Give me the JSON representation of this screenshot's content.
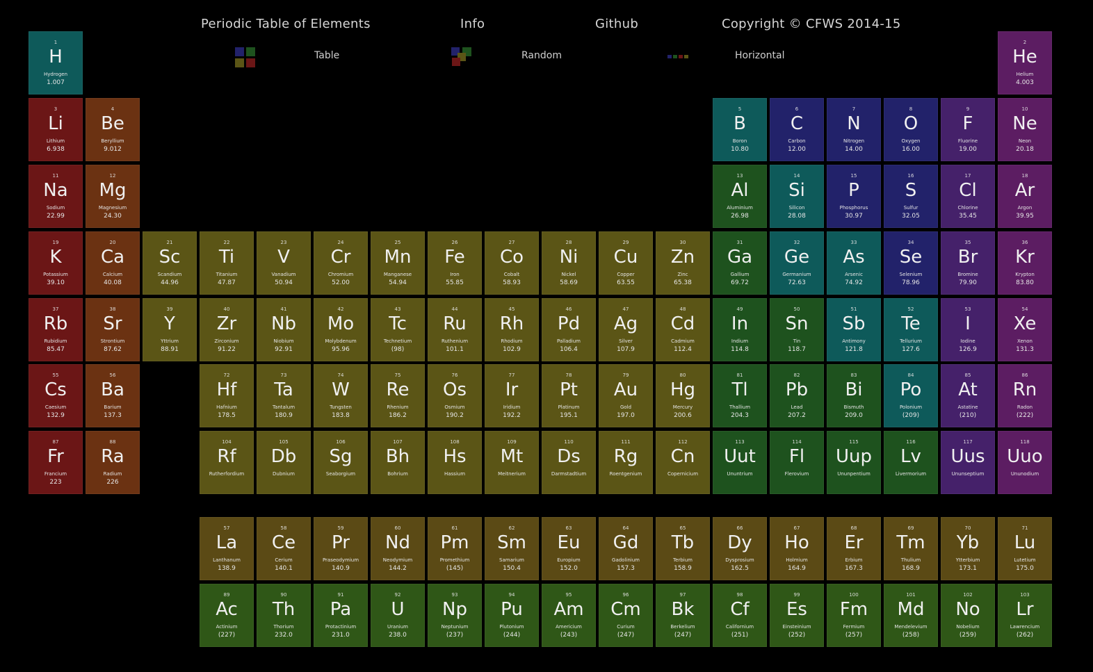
{
  "nav": {
    "title": "Periodic Table of Elements",
    "info": "Info",
    "github": "Github",
    "copyright": "Copyright © CFWS 2014-15"
  },
  "views": {
    "table": "Table",
    "random": "Random",
    "horizontal": "Horizontal"
  },
  "colors": {
    "alkali_metal": "#6b1616",
    "alkaline_earth_metal": "#6b3212",
    "transition_metal": "#5b5516",
    "post_transition_metal": "#1e521e",
    "metalloid": "#0e5a5a",
    "nonmetal": "#22226a",
    "halogen": "#45216a",
    "noble_gas": "#5c1d62",
    "lanthanide": "#5b4a15",
    "actinide": "#2f5717"
  },
  "elements": [
    {
      "n": "1",
      "s": "H",
      "name": "Hydrogen",
      "m": "1.007",
      "col": 1,
      "row": 1,
      "cat": "metalloid"
    },
    {
      "n": "2",
      "s": "He",
      "name": "Helium",
      "m": "4.003",
      "col": 18,
      "row": 1,
      "cat": "noble_gas"
    },
    {
      "n": "3",
      "s": "Li",
      "name": "Lithium",
      "m": "6.938",
      "col": 1,
      "row": 2,
      "cat": "alkali_metal"
    },
    {
      "n": "4",
      "s": "Be",
      "name": "Beryllium",
      "m": "9.012",
      "col": 2,
      "row": 2,
      "cat": "alkaline_earth_metal"
    },
    {
      "n": "5",
      "s": "B",
      "name": "Boron",
      "m": "10.80",
      "col": 13,
      "row": 2,
      "cat": "metalloid"
    },
    {
      "n": "6",
      "s": "C",
      "name": "Carbon",
      "m": "12.00",
      "col": 14,
      "row": 2,
      "cat": "nonmetal"
    },
    {
      "n": "7",
      "s": "N",
      "name": "Nitrogen",
      "m": "14.00",
      "col": 15,
      "row": 2,
      "cat": "nonmetal"
    },
    {
      "n": "8",
      "s": "O",
      "name": "Oxygen",
      "m": "16.00",
      "col": 16,
      "row": 2,
      "cat": "nonmetal"
    },
    {
      "n": "9",
      "s": "F",
      "name": "Fluorine",
      "m": "19.00",
      "col": 17,
      "row": 2,
      "cat": "halogen"
    },
    {
      "n": "10",
      "s": "Ne",
      "name": "Neon",
      "m": "20.18",
      "col": 18,
      "row": 2,
      "cat": "noble_gas"
    },
    {
      "n": "11",
      "s": "Na",
      "name": "Sodium",
      "m": "22.99",
      "col": 1,
      "row": 3,
      "cat": "alkali_metal"
    },
    {
      "n": "12",
      "s": "Mg",
      "name": "Magnesium",
      "m": "24.30",
      "col": 2,
      "row": 3,
      "cat": "alkaline_earth_metal"
    },
    {
      "n": "13",
      "s": "Al",
      "name": "Aluminium",
      "m": "26.98",
      "col": 13,
      "row": 3,
      "cat": "post_transition_metal"
    },
    {
      "n": "14",
      "s": "Si",
      "name": "Silicon",
      "m": "28.08",
      "col": 14,
      "row": 3,
      "cat": "metalloid"
    },
    {
      "n": "15",
      "s": "P",
      "name": "Phosphorus",
      "m": "30.97",
      "col": 15,
      "row": 3,
      "cat": "nonmetal"
    },
    {
      "n": "16",
      "s": "S",
      "name": "Sulfur",
      "m": "32.05",
      "col": 16,
      "row": 3,
      "cat": "nonmetal"
    },
    {
      "n": "17",
      "s": "Cl",
      "name": "Chlorine",
      "m": "35.45",
      "col": 17,
      "row": 3,
      "cat": "halogen"
    },
    {
      "n": "18",
      "s": "Ar",
      "name": "Argon",
      "m": "39.95",
      "col": 18,
      "row": 3,
      "cat": "noble_gas"
    },
    {
      "n": "19",
      "s": "K",
      "name": "Potassium",
      "m": "39.10",
      "col": 1,
      "row": 4,
      "cat": "alkali_metal"
    },
    {
      "n": "20",
      "s": "Ca",
      "name": "Calcium",
      "m": "40.08",
      "col": 2,
      "row": 4,
      "cat": "alkaline_earth_metal"
    },
    {
      "n": "21",
      "s": "Sc",
      "name": "Scandium",
      "m": "44.96",
      "col": 3,
      "row": 4,
      "cat": "transition_metal"
    },
    {
      "n": "22",
      "s": "Ti",
      "name": "Titanium",
      "m": "47.87",
      "col": 4,
      "row": 4,
      "cat": "transition_metal"
    },
    {
      "n": "23",
      "s": "V",
      "name": "Vanadium",
      "m": "50.94",
      "col": 5,
      "row": 4,
      "cat": "transition_metal"
    },
    {
      "n": "24",
      "s": "Cr",
      "name": "Chromium",
      "m": "52.00",
      "col": 6,
      "row": 4,
      "cat": "transition_metal"
    },
    {
      "n": "25",
      "s": "Mn",
      "name": "Manganese",
      "m": "54.94",
      "col": 7,
      "row": 4,
      "cat": "transition_metal"
    },
    {
      "n": "26",
      "s": "Fe",
      "name": "Iron",
      "m": "55.85",
      "col": 8,
      "row": 4,
      "cat": "transition_metal"
    },
    {
      "n": "27",
      "s": "Co",
      "name": "Cobalt",
      "m": "58.93",
      "col": 9,
      "row": 4,
      "cat": "transition_metal"
    },
    {
      "n": "28",
      "s": "Ni",
      "name": "Nickel",
      "m": "58.69",
      "col": 10,
      "row": 4,
      "cat": "transition_metal"
    },
    {
      "n": "29",
      "s": "Cu",
      "name": "Copper",
      "m": "63.55",
      "col": 11,
      "row": 4,
      "cat": "transition_metal"
    },
    {
      "n": "30",
      "s": "Zn",
      "name": "Zinc",
      "m": "65.38",
      "col": 12,
      "row": 4,
      "cat": "transition_metal"
    },
    {
      "n": "31",
      "s": "Ga",
      "name": "Gallium",
      "m": "69.72",
      "col": 13,
      "row": 4,
      "cat": "post_transition_metal"
    },
    {
      "n": "32",
      "s": "Ge",
      "name": "Germanium",
      "m": "72.63",
      "col": 14,
      "row": 4,
      "cat": "metalloid"
    },
    {
      "n": "33",
      "s": "As",
      "name": "Arsenic",
      "m": "74.92",
      "col": 15,
      "row": 4,
      "cat": "metalloid"
    },
    {
      "n": "34",
      "s": "Se",
      "name": "Selenium",
      "m": "78.96",
      "col": 16,
      "row": 4,
      "cat": "nonmetal"
    },
    {
      "n": "35",
      "s": "Br",
      "name": "Bromine",
      "m": "79.90",
      "col": 17,
      "row": 4,
      "cat": "halogen"
    },
    {
      "n": "36",
      "s": "Kr",
      "name": "Krypton",
      "m": "83.80",
      "col": 18,
      "row": 4,
      "cat": "noble_gas"
    },
    {
      "n": "37",
      "s": "Rb",
      "name": "Rubidium",
      "m": "85.47",
      "col": 1,
      "row": 5,
      "cat": "alkali_metal"
    },
    {
      "n": "38",
      "s": "Sr",
      "name": "Strontium",
      "m": "87.62",
      "col": 2,
      "row": 5,
      "cat": "alkaline_earth_metal"
    },
    {
      "n": "39",
      "s": "Y",
      "name": "Yttrium",
      "m": "88.91",
      "col": 3,
      "row": 5,
      "cat": "transition_metal"
    },
    {
      "n": "40",
      "s": "Zr",
      "name": "Zirconium",
      "m": "91.22",
      "col": 4,
      "row": 5,
      "cat": "transition_metal"
    },
    {
      "n": "41",
      "s": "Nb",
      "name": "Niobium",
      "m": "92.91",
      "col": 5,
      "row": 5,
      "cat": "transition_metal"
    },
    {
      "n": "42",
      "s": "Mo",
      "name": "Molybdenum",
      "m": "95.96",
      "col": 6,
      "row": 5,
      "cat": "transition_metal"
    },
    {
      "n": "43",
      "s": "Tc",
      "name": "Technetium",
      "m": "(98)",
      "col": 7,
      "row": 5,
      "cat": "transition_metal"
    },
    {
      "n": "44",
      "s": "Ru",
      "name": "Ruthenium",
      "m": "101.1",
      "col": 8,
      "row": 5,
      "cat": "transition_metal"
    },
    {
      "n": "45",
      "s": "Rh",
      "name": "Rhodium",
      "m": "102.9",
      "col": 9,
      "row": 5,
      "cat": "transition_metal"
    },
    {
      "n": "46",
      "s": "Pd",
      "name": "Palladium",
      "m": "106.4",
      "col": 10,
      "row": 5,
      "cat": "transition_metal"
    },
    {
      "n": "47",
      "s": "Ag",
      "name": "Silver",
      "m": "107.9",
      "col": 11,
      "row": 5,
      "cat": "transition_metal"
    },
    {
      "n": "48",
      "s": "Cd",
      "name": "Cadmium",
      "m": "112.4",
      "col": 12,
      "row": 5,
      "cat": "transition_metal"
    },
    {
      "n": "49",
      "s": "In",
      "name": "Indium",
      "m": "114.8",
      "col": 13,
      "row": 5,
      "cat": "post_transition_metal"
    },
    {
      "n": "50",
      "s": "Sn",
      "name": "Tin",
      "m": "118.7",
      "col": 14,
      "row": 5,
      "cat": "post_transition_metal"
    },
    {
      "n": "51",
      "s": "Sb",
      "name": "Antimony",
      "m": "121.8",
      "col": 15,
      "row": 5,
      "cat": "metalloid"
    },
    {
      "n": "52",
      "s": "Te",
      "name": "Tellurium",
      "m": "127.6",
      "col": 16,
      "row": 5,
      "cat": "metalloid"
    },
    {
      "n": "53",
      "s": "I",
      "name": "Iodine",
      "m": "126.9",
      "col": 17,
      "row": 5,
      "cat": "halogen"
    },
    {
      "n": "54",
      "s": "Xe",
      "name": "Xenon",
      "m": "131.3",
      "col": 18,
      "row": 5,
      "cat": "noble_gas"
    },
    {
      "n": "55",
      "s": "Cs",
      "name": "Caesium",
      "m": "132.9",
      "col": 1,
      "row": 6,
      "cat": "alkali_metal"
    },
    {
      "n": "56",
      "s": "Ba",
      "name": "Barium",
      "m": "137.3",
      "col": 2,
      "row": 6,
      "cat": "alkaline_earth_metal"
    },
    {
      "n": "72",
      "s": "Hf",
      "name": "Hafnium",
      "m": "178.5",
      "col": 4,
      "row": 6,
      "cat": "transition_metal"
    },
    {
      "n": "73",
      "s": "Ta",
      "name": "Tantalum",
      "m": "180.9",
      "col": 5,
      "row": 6,
      "cat": "transition_metal"
    },
    {
      "n": "74",
      "s": "W",
      "name": "Tungsten",
      "m": "183.8",
      "col": 6,
      "row": 6,
      "cat": "transition_metal"
    },
    {
      "n": "75",
      "s": "Re",
      "name": "Rhenium",
      "m": "186.2",
      "col": 7,
      "row": 6,
      "cat": "transition_metal"
    },
    {
      "n": "76",
      "s": "Os",
      "name": "Osmium",
      "m": "190.2",
      "col": 8,
      "row": 6,
      "cat": "transition_metal"
    },
    {
      "n": "77",
      "s": "Ir",
      "name": "Iridium",
      "m": "192.2",
      "col": 9,
      "row": 6,
      "cat": "transition_metal"
    },
    {
      "n": "78",
      "s": "Pt",
      "name": "Platinum",
      "m": "195.1",
      "col": 10,
      "row": 6,
      "cat": "transition_metal"
    },
    {
      "n": "79",
      "s": "Au",
      "name": "Gold",
      "m": "197.0",
      "col": 11,
      "row": 6,
      "cat": "transition_metal"
    },
    {
      "n": "80",
      "s": "Hg",
      "name": "Mercury",
      "m": "200.6",
      "col": 12,
      "row": 6,
      "cat": "transition_metal"
    },
    {
      "n": "81",
      "s": "Tl",
      "name": "Thallium",
      "m": "204.3",
      "col": 13,
      "row": 6,
      "cat": "post_transition_metal"
    },
    {
      "n": "82",
      "s": "Pb",
      "name": "Lead",
      "m": "207.2",
      "col": 14,
      "row": 6,
      "cat": "post_transition_metal"
    },
    {
      "n": "83",
      "s": "Bi",
      "name": "Bismuth",
      "m": "209.0",
      "col": 15,
      "row": 6,
      "cat": "post_transition_metal"
    },
    {
      "n": "84",
      "s": "Po",
      "name": "Polonium",
      "m": "(209)",
      "col": 16,
      "row": 6,
      "cat": "metalloid"
    },
    {
      "n": "85",
      "s": "At",
      "name": "Astatine",
      "m": "(210)",
      "col": 17,
      "row": 6,
      "cat": "halogen"
    },
    {
      "n": "86",
      "s": "Rn",
      "name": "Radon",
      "m": "(222)",
      "col": 18,
      "row": 6,
      "cat": "noble_gas"
    },
    {
      "n": "87",
      "s": "Fr",
      "name": "Francium",
      "m": "223",
      "col": 1,
      "row": 7,
      "cat": "alkali_metal"
    },
    {
      "n": "88",
      "s": "Ra",
      "name": "Radium",
      "m": "226",
      "col": 2,
      "row": 7,
      "cat": "alkaline_earth_metal"
    },
    {
      "n": "104",
      "s": "Rf",
      "name": "Rutherfordium",
      "m": "",
      "col": 4,
      "row": 7,
      "cat": "transition_metal"
    },
    {
      "n": "105",
      "s": "Db",
      "name": "Dubnium",
      "m": "",
      "col": 5,
      "row": 7,
      "cat": "transition_metal"
    },
    {
      "n": "106",
      "s": "Sg",
      "name": "Seaborgium",
      "m": "",
      "col": 6,
      "row": 7,
      "cat": "transition_metal"
    },
    {
      "n": "107",
      "s": "Bh",
      "name": "Bohrium",
      "m": "",
      "col": 7,
      "row": 7,
      "cat": "transition_metal"
    },
    {
      "n": "108",
      "s": "Hs",
      "name": "Hassium",
      "m": "",
      "col": 8,
      "row": 7,
      "cat": "transition_metal"
    },
    {
      "n": "109",
      "s": "Mt",
      "name": "Meitnerium",
      "m": "",
      "col": 9,
      "row": 7,
      "cat": "transition_metal"
    },
    {
      "n": "110",
      "s": "Ds",
      "name": "Darmstadtium",
      "m": "",
      "col": 10,
      "row": 7,
      "cat": "transition_metal"
    },
    {
      "n": "111",
      "s": "Rg",
      "name": "Roentgenium",
      "m": "",
      "col": 11,
      "row": 7,
      "cat": "transition_metal"
    },
    {
      "n": "112",
      "s": "Cn",
      "name": "Copernicium",
      "m": "",
      "col": 12,
      "row": 7,
      "cat": "transition_metal"
    },
    {
      "n": "113",
      "s": "Uut",
      "name": "Ununtrium",
      "m": "",
      "col": 13,
      "row": 7,
      "cat": "post_transition_metal"
    },
    {
      "n": "114",
      "s": "Fl",
      "name": "Flerovium",
      "m": "",
      "col": 14,
      "row": 7,
      "cat": "post_transition_metal"
    },
    {
      "n": "115",
      "s": "Uup",
      "name": "Ununpentium",
      "m": "",
      "col": 15,
      "row": 7,
      "cat": "post_transition_metal"
    },
    {
      "n": "116",
      "s": "Lv",
      "name": "Livermorium",
      "m": "",
      "col": 16,
      "row": 7,
      "cat": "post_transition_metal"
    },
    {
      "n": "117",
      "s": "Uus",
      "name": "Ununseptium",
      "m": "",
      "col": 17,
      "row": 7,
      "cat": "halogen"
    },
    {
      "n": "118",
      "s": "Uuo",
      "name": "Ununodium",
      "m": "",
      "col": 18,
      "row": 7,
      "cat": "noble_gas"
    },
    {
      "n": "57",
      "s": "La",
      "name": "Lanthanum",
      "m": "138.9",
      "col": 4,
      "row": 8,
      "cat": "lanthanide"
    },
    {
      "n": "58",
      "s": "Ce",
      "name": "Cerium",
      "m": "140.1",
      "col": 5,
      "row": 8,
      "cat": "lanthanide"
    },
    {
      "n": "59",
      "s": "Pr",
      "name": "Praseodymium",
      "m": "140.9",
      "col": 6,
      "row": 8,
      "cat": "lanthanide"
    },
    {
      "n": "60",
      "s": "Nd",
      "name": "Neodymium",
      "m": "144.2",
      "col": 7,
      "row": 8,
      "cat": "lanthanide"
    },
    {
      "n": "61",
      "s": "Pm",
      "name": "Promethium",
      "m": "(145)",
      "col": 8,
      "row": 8,
      "cat": "lanthanide"
    },
    {
      "n": "62",
      "s": "Sm",
      "name": "Samarium",
      "m": "150.4",
      "col": 9,
      "row": 8,
      "cat": "lanthanide"
    },
    {
      "n": "63",
      "s": "Eu",
      "name": "Europium",
      "m": "152.0",
      "col": 10,
      "row": 8,
      "cat": "lanthanide"
    },
    {
      "n": "64",
      "s": "Gd",
      "name": "Gadolinium",
      "m": "157.3",
      "col": 11,
      "row": 8,
      "cat": "lanthanide"
    },
    {
      "n": "65",
      "s": "Tb",
      "name": "Terbium",
      "m": "158.9",
      "col": 12,
      "row": 8,
      "cat": "lanthanide"
    },
    {
      "n": "66",
      "s": "Dy",
      "name": "Dysprosium",
      "m": "162.5",
      "col": 13,
      "row": 8,
      "cat": "lanthanide"
    },
    {
      "n": "67",
      "s": "Ho",
      "name": "Holmium",
      "m": "164.9",
      "col": 14,
      "row": 8,
      "cat": "lanthanide"
    },
    {
      "n": "68",
      "s": "Er",
      "name": "Erbium",
      "m": "167.3",
      "col": 15,
      "row": 8,
      "cat": "lanthanide"
    },
    {
      "n": "69",
      "s": "Tm",
      "name": "Thulium",
      "m": "168.9",
      "col": 16,
      "row": 8,
      "cat": "lanthanide"
    },
    {
      "n": "70",
      "s": "Yb",
      "name": "Ytterbium",
      "m": "173.1",
      "col": 17,
      "row": 8,
      "cat": "lanthanide"
    },
    {
      "n": "71",
      "s": "Lu",
      "name": "Lutetium",
      "m": "175.0",
      "col": 18,
      "row": 8,
      "cat": "lanthanide"
    },
    {
      "n": "89",
      "s": "Ac",
      "name": "Actinium",
      "m": "(227)",
      "col": 4,
      "row": 9,
      "cat": "actinide"
    },
    {
      "n": "90",
      "s": "Th",
      "name": "Thorium",
      "m": "232.0",
      "col": 5,
      "row": 9,
      "cat": "actinide"
    },
    {
      "n": "91",
      "s": "Pa",
      "name": "Protactinium",
      "m": "231.0",
      "col": 6,
      "row": 9,
      "cat": "actinide"
    },
    {
      "n": "92",
      "s": "U",
      "name": "Uranium",
      "m": "238.0",
      "col": 7,
      "row": 9,
      "cat": "actinide"
    },
    {
      "n": "93",
      "s": "Np",
      "name": "Neptunium",
      "m": "(237)",
      "col": 8,
      "row": 9,
      "cat": "actinide"
    },
    {
      "n": "94",
      "s": "Pu",
      "name": "Plutonium",
      "m": "(244)",
      "col": 9,
      "row": 9,
      "cat": "actinide"
    },
    {
      "n": "95",
      "s": "Am",
      "name": "Americium",
      "m": "(243)",
      "col": 10,
      "row": 9,
      "cat": "actinide"
    },
    {
      "n": "96",
      "s": "Cm",
      "name": "Curium",
      "m": "(247)",
      "col": 11,
      "row": 9,
      "cat": "actinide"
    },
    {
      "n": "97",
      "s": "Bk",
      "name": "Berkelium",
      "m": "(247)",
      "col": 12,
      "row": 9,
      "cat": "actinide"
    },
    {
      "n": "98",
      "s": "Cf",
      "name": "Californium",
      "m": "(251)",
      "col": 13,
      "row": 9,
      "cat": "actinide"
    },
    {
      "n": "99",
      "s": "Es",
      "name": "Einsteinium",
      "m": "(252)",
      "col": 14,
      "row": 9,
      "cat": "actinide"
    },
    {
      "n": "100",
      "s": "Fm",
      "name": "Fermium",
      "m": "(257)",
      "col": 15,
      "row": 9,
      "cat": "actinide"
    },
    {
      "n": "101",
      "s": "Md",
      "name": "Mendelevium",
      "m": "(258)",
      "col": 16,
      "row": 9,
      "cat": "actinide"
    },
    {
      "n": "102",
      "s": "No",
      "name": "Nobelium",
      "m": "(259)",
      "col": 17,
      "row": 9,
      "cat": "actinide"
    },
    {
      "n": "103",
      "s": "Lr",
      "name": "Lawrencium",
      "m": "(262)",
      "col": 18,
      "row": 9,
      "cat": "actinide"
    }
  ]
}
